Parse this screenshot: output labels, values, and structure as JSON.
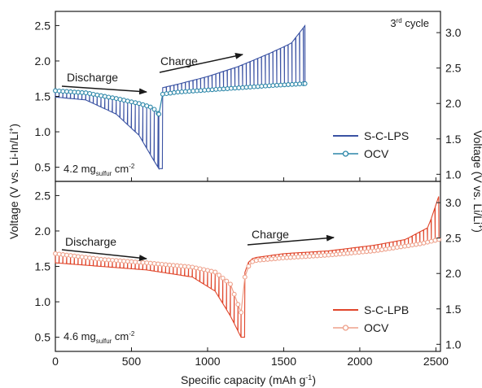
{
  "figure": {
    "ylabel_left": "Voltage (V vs. Li-In/Li",
    "ylabel_left_sup": "+",
    "ylabel_left_end": ")",
    "ylabel_right": "Voltage (V vs. Li/Li",
    "ylabel_right_sup": "+",
    "ylabel_right_end": ")",
    "xlabel": "Specific capacity (mAh g",
    "xlabel_sup": "-1",
    "xlabel_end": ")"
  },
  "chart_data": [
    {
      "type": "line",
      "panel": "top",
      "cycle_label": "3",
      "cycle_label_sup": "rd",
      "cycle_label_end": " cycle",
      "loading_prefix": "4.2 mg",
      "loading_sub": "sulfur",
      "loading_suffix": " cm",
      "loading_sup": "-2",
      "annotations": {
        "discharge": "Discharge",
        "charge": "Charge"
      },
      "xlim": [
        0,
        2530
      ],
      "ylim_left": [
        0.3,
        2.7
      ],
      "ylim_right": [
        0.9,
        3.3
      ],
      "left_ticks": [
        "0.5",
        "1.0",
        "1.5",
        "2.0",
        "2.5"
      ],
      "right_ticks": [
        "1.0",
        "1.5",
        "2.0",
        "2.5",
        "3.0"
      ],
      "legend_position": "right",
      "series": [
        {
          "name": "S-C-LPS",
          "color": "#3a52a3",
          "style": "line",
          "discharge_end": 680,
          "charge_end": 1640,
          "pulse_interval": 25,
          "discharge_ocv": [
            [
              0,
              1.58
            ],
            [
              200,
              1.55
            ],
            [
              400,
              1.47
            ],
            [
              550,
              1.4
            ],
            [
              640,
              1.34
            ],
            [
              680,
              1.25
            ]
          ],
          "discharge_ccv": [
            [
              0,
              1.49
            ],
            [
              200,
              1.45
            ],
            [
              400,
              1.25
            ],
            [
              550,
              0.95
            ],
            [
              640,
              0.62
            ],
            [
              680,
              0.48
            ]
          ],
          "charge_ocv": [
            [
              680,
              1.25
            ],
            [
              700,
              1.53
            ],
            [
              800,
              1.56
            ],
            [
              1000,
              1.59
            ],
            [
              1200,
              1.62
            ],
            [
              1400,
              1.65
            ],
            [
              1640,
              1.68
            ]
          ],
          "charge_ccv": [
            [
              680,
              1.3
            ],
            [
              700,
              1.62
            ],
            [
              800,
              1.67
            ],
            [
              1000,
              1.78
            ],
            [
              1200,
              1.92
            ],
            [
              1400,
              2.1
            ],
            [
              1550,
              2.25
            ],
            [
              1640,
              2.5
            ]
          ]
        },
        {
          "name": "OCV",
          "color": "#2b86a8",
          "style": "marker-line",
          "points_from": "S-C-LPS"
        }
      ]
    },
    {
      "type": "line",
      "panel": "bottom",
      "loading_prefix": "4.6 mg",
      "loading_sub": "sulfur",
      "loading_suffix": " cm",
      "loading_sup": "-2",
      "annotations": {
        "discharge": "Discharge",
        "charge": "Charge"
      },
      "xlim": [
        0,
        2530
      ],
      "xticks": [
        "0",
        "500",
        "1000",
        "1500",
        "2000",
        "2500"
      ],
      "ylim_left": [
        0.3,
        2.7
      ],
      "ylim_right": [
        0.9,
        3.3
      ],
      "left_ticks": [
        "0.5",
        "1.0",
        "1.5",
        "2.0",
        "2.5"
      ],
      "right_ticks": [
        "1.0",
        "1.5",
        "2.0",
        "2.5",
        "3.0"
      ],
      "legend_position": "bottom-right",
      "series": [
        {
          "name": "S-C-LPB",
          "color": "#e0452a",
          "style": "line",
          "discharge_end": 1220,
          "charge_end": 2520,
          "pulse_interval": 25,
          "discharge_ocv": [
            [
              0,
              1.68
            ],
            [
              300,
              1.6
            ],
            [
              600,
              1.55
            ],
            [
              900,
              1.49
            ],
            [
              1050,
              1.42
            ],
            [
              1150,
              1.25
            ],
            [
              1220,
              0.85
            ]
          ],
          "discharge_ccv": [
            [
              0,
              1.55
            ],
            [
              300,
              1.5
            ],
            [
              600,
              1.45
            ],
            [
              900,
              1.35
            ],
            [
              1050,
              1.15
            ],
            [
              1150,
              0.8
            ],
            [
              1220,
              0.5
            ]
          ],
          "charge_ocv": [
            [
              1220,
              0.85
            ],
            [
              1250,
              1.45
            ],
            [
              1300,
              1.58
            ],
            [
              1500,
              1.62
            ],
            [
              1800,
              1.66
            ],
            [
              2100,
              1.72
            ],
            [
              2400,
              1.82
            ],
            [
              2520,
              1.88
            ]
          ],
          "charge_ccv": [
            [
              1220,
              0.9
            ],
            [
              1250,
              1.52
            ],
            [
              1300,
              1.62
            ],
            [
              1500,
              1.68
            ],
            [
              1800,
              1.72
            ],
            [
              2100,
              1.8
            ],
            [
              2300,
              1.88
            ],
            [
              2450,
              2.05
            ],
            [
              2520,
              2.5
            ]
          ]
        },
        {
          "name": "OCV",
          "color": "#eea08a",
          "style": "marker-line",
          "points_from": "S-C-LPB"
        }
      ]
    }
  ]
}
